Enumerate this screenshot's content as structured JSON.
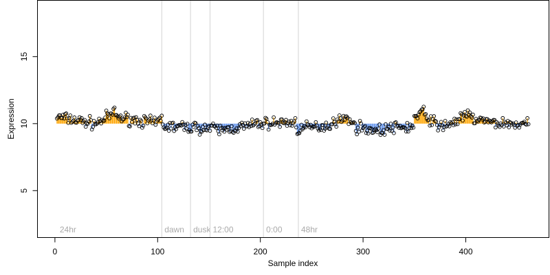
{
  "chart_data": {
    "type": "scatter",
    "xlabel": "Sample index",
    "ylabel": "Expression",
    "xlim": [
      -17,
      481
    ],
    "ylim": [
      1.5,
      19.2
    ],
    "x_ticks": [
      0,
      100,
      200,
      300,
      400
    ],
    "y_ticks": [
      5,
      10,
      15
    ],
    "baseline": 10,
    "grid": false,
    "colors": {
      "above": "#ffa500",
      "below": "#6495ed",
      "point_stroke": "#000000",
      "section_line": "#d3d3d3",
      "section_text": "#aaaaaa"
    },
    "sections": [
      {
        "label": "24hr",
        "x": 2
      },
      {
        "label": "dawn",
        "x": 104
      },
      {
        "label": "dusk",
        "x": 132
      },
      {
        "label": "12:00",
        "x": 151
      },
      {
        "label": "0:00",
        "x": 203
      },
      {
        "label": "48hr",
        "x": 237
      }
    ],
    "segments": [
      {
        "x": [
          2,
          40
        ],
        "y": [
          10.5,
          10.0
        ]
      },
      {
        "x": [
          40,
          60
        ],
        "y": [
          10.0,
          10.9
        ]
      },
      {
        "x": [
          60,
          100
        ],
        "y": [
          10.5,
          10.0
        ]
      },
      {
        "x": [
          100,
          105
        ],
        "y": [
          10.1,
          10.6
        ]
      },
      {
        "x": [
          105,
          140
        ],
        "y": [
          9.8,
          9.7
        ]
      },
      {
        "x": [
          140,
          160
        ],
        "y": [
          9.7,
          9.6
        ]
      },
      {
        "x": [
          160,
          195
        ],
        "y": [
          9.5,
          9.9
        ]
      },
      {
        "x": [
          195,
          235
        ],
        "y": [
          10.0,
          10.1
        ]
      },
      {
        "x": [
          235,
          270
        ],
        "y": [
          9.6,
          9.9
        ]
      },
      {
        "x": [
          270,
          290
        ],
        "y": [
          10.2,
          10.4
        ]
      },
      {
        "x": [
          290,
          320
        ],
        "y": [
          9.8,
          9.4
        ]
      },
      {
        "x": [
          320,
          350
        ],
        "y": [
          9.6,
          9.8
        ]
      },
      {
        "x": [
          350,
          360
        ],
        "y": [
          10.4,
          11.0
        ]
      },
      {
        "x": [
          360,
          372
        ],
        "y": [
          10.6,
          10.0
        ]
      },
      {
        "x": [
          372,
          392
        ],
        "y": [
          9.7,
          10.2
        ]
      },
      {
        "x": [
          392,
          405
        ],
        "y": [
          10.3,
          10.7
        ]
      },
      {
        "x": [
          405,
          420
        ],
        "y": [
          10.4,
          10.2
        ]
      },
      {
        "x": [
          420,
          462
        ],
        "y": [
          10.1,
          9.9
        ]
      }
    ]
  }
}
